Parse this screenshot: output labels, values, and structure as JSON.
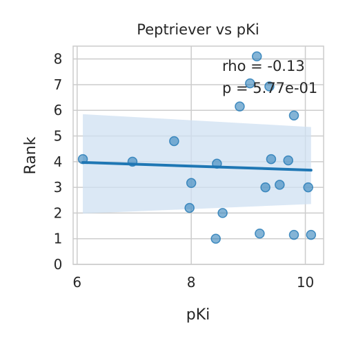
{
  "chart_data": {
    "type": "scatter",
    "title": "Peptriever vs pKi",
    "xlabel": "pKi",
    "ylabel": "Rank",
    "xlim": [
      5.93,
      10.32
    ],
    "ylim": [
      0,
      8.5
    ],
    "xticks": [
      6,
      8,
      10
    ],
    "yticks": [
      0,
      1,
      2,
      3,
      4,
      5,
      6,
      7,
      8
    ],
    "grid": true,
    "series": [
      {
        "points": [
          {
            "x": 6.1,
            "y": 4.1
          },
          {
            "x": 6.97,
            "y": 4.0
          },
          {
            "x": 7.7,
            "y": 4.8
          },
          {
            "x": 7.97,
            "y": 2.2
          },
          {
            "x": 8.0,
            "y": 3.17
          },
          {
            "x": 8.43,
            "y": 1.0
          },
          {
            "x": 8.45,
            "y": 3.92
          },
          {
            "x": 8.55,
            "y": 2.0
          },
          {
            "x": 8.85,
            "y": 6.15
          },
          {
            "x": 9.03,
            "y": 7.05
          },
          {
            "x": 9.15,
            "y": 8.1
          },
          {
            "x": 9.2,
            "y": 1.2
          },
          {
            "x": 9.3,
            "y": 3.0
          },
          {
            "x": 9.37,
            "y": 6.93
          },
          {
            "x": 9.4,
            "y": 4.1
          },
          {
            "x": 9.55,
            "y": 3.1
          },
          {
            "x": 9.7,
            "y": 4.05
          },
          {
            "x": 9.8,
            "y": 5.8
          },
          {
            "x": 9.8,
            "y": 1.15
          },
          {
            "x": 10.05,
            "y": 3.0
          },
          {
            "x": 10.1,
            "y": 1.15
          }
        ]
      }
    ],
    "regression": {
      "x": [
        6.1,
        10.1
      ],
      "y": [
        3.97,
        3.67
      ],
      "ci_upper": [
        5.85,
        5.35
      ],
      "ci_lower": [
        1.98,
        2.35
      ]
    },
    "annotations": [
      "rho = -0.13",
      "p = 5.77e-01"
    ],
    "colors": {
      "points": "#1f77b4",
      "line": "#1f77b4",
      "band": "#cfe0f1",
      "grid": "#cccccc",
      "axes": "#cccccc"
    }
  }
}
